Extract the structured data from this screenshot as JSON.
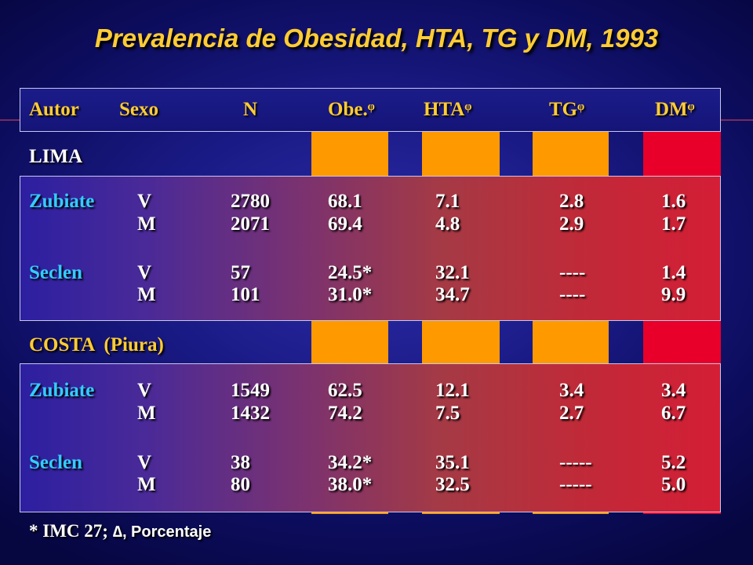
{
  "title": "Prevalencia de Obesidad, HTA, TG y DM, 1993",
  "headers": {
    "autor": "Autor",
    "sexo": "Sexo",
    "n": "N",
    "obe": "Obe.ᵠ",
    "hta": "HTAᵠ",
    "tg": "TGᵠ",
    "dm": "DMᵠ"
  },
  "sections": [
    {
      "name": "LIMA",
      "rows": [
        {
          "autor": "Zubiate",
          "sexo": "V",
          "n": "2780",
          "obe": "68.1",
          "hta": "7.1",
          "tg": "2.8",
          "dm": "1.6"
        },
        {
          "autor": "",
          "sexo": "M",
          "n": "2071",
          "obe": "69.4",
          "hta": "4.8",
          "tg": "2.9",
          "dm": "1.7"
        },
        {
          "autor": "Seclen",
          "sexo": "V",
          "n": "57",
          "obe": "24.5*",
          "hta": "32.1",
          "tg": "----",
          "dm": "1.4"
        },
        {
          "autor": "",
          "sexo": "M",
          "n": "101",
          "obe": "31.0*",
          "hta": "34.7",
          "tg": "----",
          "dm": "9.9"
        }
      ]
    },
    {
      "name": "COSTA  (Piura)",
      "rows": [
        {
          "autor": "Zubiate",
          "sexo": "V",
          "n": "1549",
          "obe": "62.5",
          "hta": "12.1",
          "tg": "3.4",
          "dm": "3.4"
        },
        {
          "autor": "",
          "sexo": "M",
          "n": "1432",
          "obe": "74.2",
          "hta": "7.5",
          "tg": "2.7",
          "dm": "6.7"
        },
        {
          "autor": "Seclen",
          "sexo": "V",
          "n": "38",
          "obe": "34.2*",
          "hta": "35.1",
          "tg": "-----",
          "dm": "5.2"
        },
        {
          "autor": "",
          "sexo": "M",
          "n": "80",
          "obe": "38.0*",
          "hta": "32.5",
          "tg": "-----",
          "dm": "5.0"
        }
      ]
    }
  ],
  "footer": {
    "part1": "* IMC 27; ",
    "delta": "∆",
    "part2": ", Porcentaje"
  },
  "colors": {
    "title": "#ffcc33",
    "header_text": "#ffcc33",
    "author_text": "#33ccff",
    "column_highlight": "#ff9900",
    "dm_highlight": "#e8002a"
  }
}
